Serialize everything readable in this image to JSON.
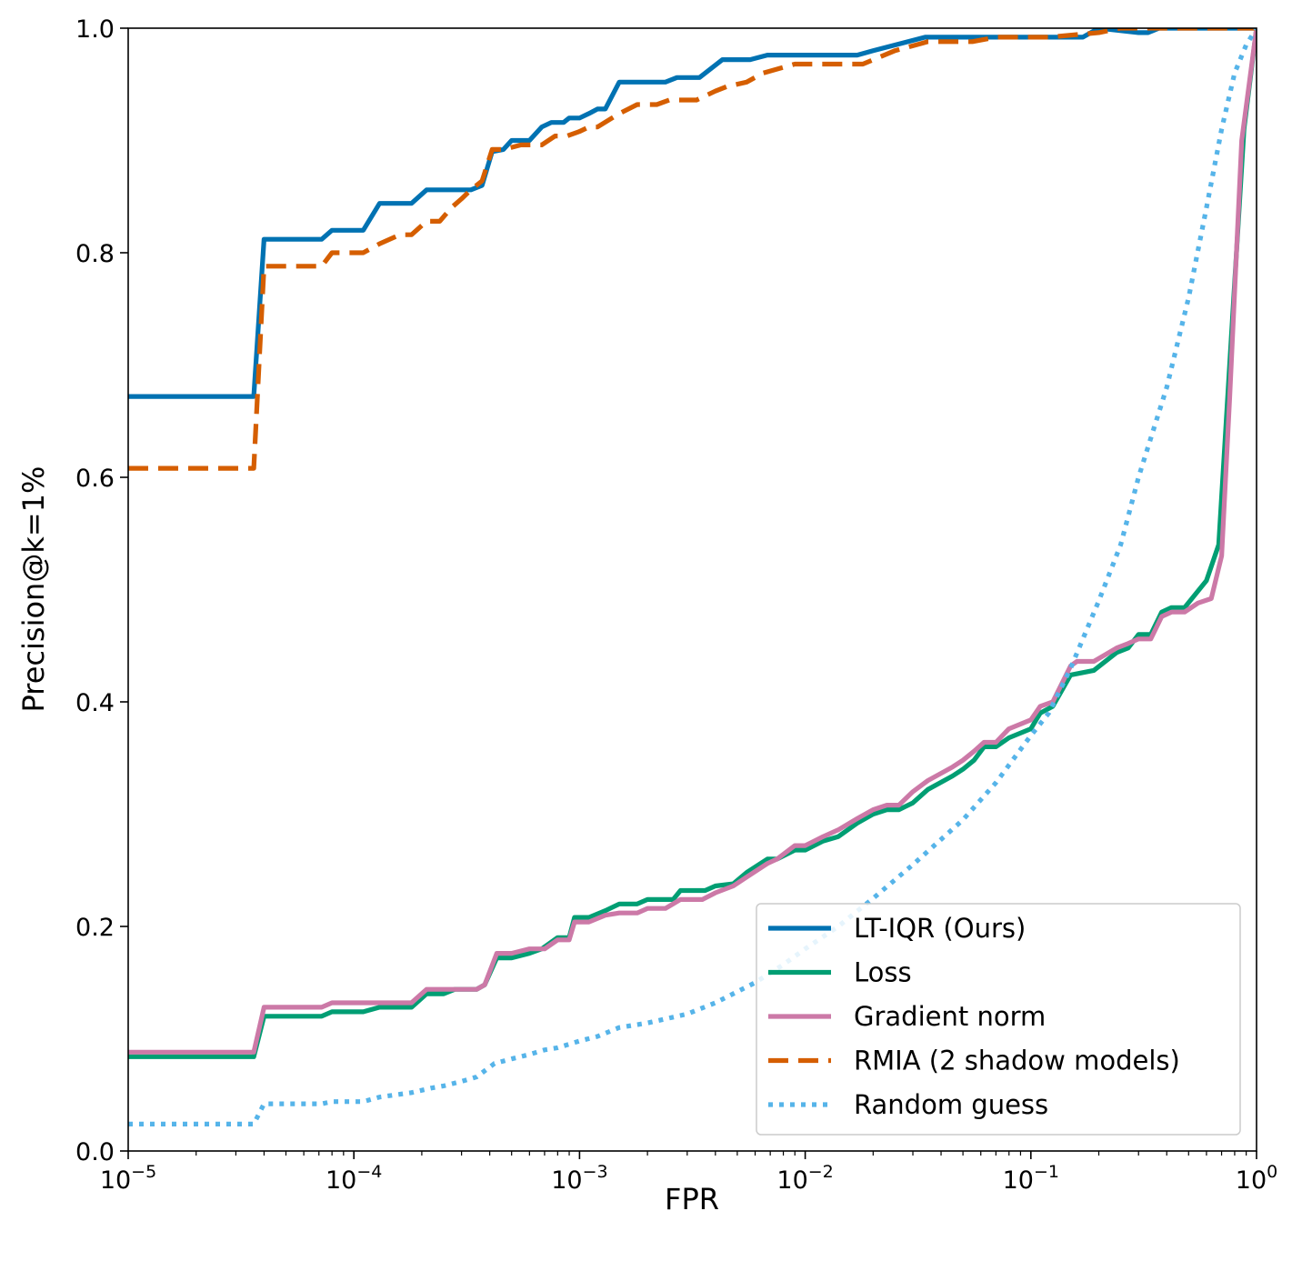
{
  "chart_data": {
    "type": "line",
    "xlabel": "FPR",
    "ylabel": "Precision@k=1%",
    "xscale": "log",
    "xlim": [
      1e-05,
      1
    ],
    "ylim": [
      0,
      1
    ],
    "grid": false,
    "legend_position": "lower-right",
    "x_ticks": [
      {
        "value": 1e-05,
        "base": "10",
        "exp": "−5"
      },
      {
        "value": 0.0001,
        "base": "10",
        "exp": "−4"
      },
      {
        "value": 0.001,
        "base": "10",
        "exp": "−3"
      },
      {
        "value": 0.01,
        "base": "10",
        "exp": "−2"
      },
      {
        "value": 0.1,
        "base": "10",
        "exp": "−1"
      },
      {
        "value": 1,
        "base": "10",
        "exp": "0"
      }
    ],
    "y_ticks": [
      {
        "value": 0,
        "label": "0.0"
      },
      {
        "value": 0.2,
        "label": "0.2"
      },
      {
        "value": 0.4,
        "label": "0.4"
      },
      {
        "value": 0.6,
        "label": "0.6"
      },
      {
        "value": 0.8,
        "label": "0.8"
      },
      {
        "value": 1,
        "label": "1.0"
      }
    ],
    "series": [
      {
        "name": "LT-IQR (Ours)",
        "color": "#0072b2",
        "style": "solid",
        "points": [
          [
            1e-05,
            0.672
          ],
          [
            3.6e-05,
            0.672
          ],
          [
            4e-05,
            0.812
          ],
          [
            7.2e-05,
            0.812
          ],
          [
            8e-05,
            0.82
          ],
          [
            0.00011,
            0.82
          ],
          [
            0.00013,
            0.844
          ],
          [
            0.00018,
            0.844
          ],
          [
            0.00021,
            0.856
          ],
          [
            0.00033,
            0.856
          ],
          [
            0.00037,
            0.86
          ],
          [
            0.00041,
            0.89
          ],
          [
            0.00046,
            0.892
          ],
          [
            0.0005,
            0.9
          ],
          [
            0.0006,
            0.9
          ],
          [
            0.00068,
            0.912
          ],
          [
            0.00075,
            0.916
          ],
          [
            0.00085,
            0.916
          ],
          [
            0.0009,
            0.92
          ],
          [
            0.001,
            0.92
          ],
          [
            0.0011,
            0.924
          ],
          [
            0.0012,
            0.928
          ],
          [
            0.0013,
            0.928
          ],
          [
            0.0015,
            0.952
          ],
          [
            0.0024,
            0.952
          ],
          [
            0.0027,
            0.956
          ],
          [
            0.0034,
            0.956
          ],
          [
            0.0043,
            0.972
          ],
          [
            0.0057,
            0.972
          ],
          [
            0.0068,
            0.976
          ],
          [
            0.017,
            0.976
          ],
          [
            0.02,
            0.98
          ],
          [
            0.034,
            0.992
          ],
          [
            0.17,
            0.992
          ],
          [
            0.2,
            1.0
          ],
          [
            0.3,
            0.996
          ],
          [
            0.33,
            0.996
          ],
          [
            0.37,
            1.0
          ],
          [
            1,
            1.0
          ]
        ]
      },
      {
        "name": "Loss",
        "color": "#009e73",
        "style": "solid",
        "points": [
          [
            1e-05,
            0.084
          ],
          [
            3.6e-05,
            0.084
          ],
          [
            4e-05,
            0.12
          ],
          [
            7.2e-05,
            0.12
          ],
          [
            8e-05,
            0.124
          ],
          [
            0.00011,
            0.124
          ],
          [
            0.00013,
            0.128
          ],
          [
            0.00018,
            0.128
          ],
          [
            0.00021,
            0.14
          ],
          [
            0.00025,
            0.14
          ],
          [
            0.00028,
            0.144
          ],
          [
            0.00035,
            0.144
          ],
          [
            0.00038,
            0.148
          ],
          [
            0.00043,
            0.172
          ],
          [
            0.0005,
            0.172
          ],
          [
            0.0006,
            0.176
          ],
          [
            0.00068,
            0.18
          ],
          [
            0.0008,
            0.19
          ],
          [
            0.0009,
            0.19
          ],
          [
            0.00095,
            0.208
          ],
          [
            0.0011,
            0.208
          ],
          [
            0.0013,
            0.214
          ],
          [
            0.0015,
            0.22
          ],
          [
            0.0018,
            0.22
          ],
          [
            0.002,
            0.224
          ],
          [
            0.0026,
            0.224
          ],
          [
            0.0028,
            0.232
          ],
          [
            0.0036,
            0.232
          ],
          [
            0.004,
            0.236
          ],
          [
            0.0048,
            0.238
          ],
          [
            0.0055,
            0.248
          ],
          [
            0.0068,
            0.26
          ],
          [
            0.0075,
            0.26
          ],
          [
            0.009,
            0.268
          ],
          [
            0.01,
            0.268
          ],
          [
            0.012,
            0.276
          ],
          [
            0.014,
            0.28
          ],
          [
            0.017,
            0.292
          ],
          [
            0.02,
            0.3
          ],
          [
            0.023,
            0.304
          ],
          [
            0.026,
            0.304
          ],
          [
            0.03,
            0.31
          ],
          [
            0.035,
            0.322
          ],
          [
            0.045,
            0.334
          ],
          [
            0.05,
            0.34
          ],
          [
            0.056,
            0.348
          ],
          [
            0.062,
            0.36
          ],
          [
            0.07,
            0.36
          ],
          [
            0.08,
            0.368
          ],
          [
            0.1,
            0.376
          ],
          [
            0.11,
            0.39
          ],
          [
            0.125,
            0.396
          ],
          [
            0.15,
            0.424
          ],
          [
            0.19,
            0.428
          ],
          [
            0.24,
            0.444
          ],
          [
            0.27,
            0.448
          ],
          [
            0.3,
            0.46
          ],
          [
            0.34,
            0.46
          ],
          [
            0.38,
            0.48
          ],
          [
            0.42,
            0.484
          ],
          [
            0.48,
            0.484
          ],
          [
            0.6,
            0.508
          ],
          [
            0.68,
            0.54
          ],
          [
            0.76,
            0.7
          ],
          [
            0.88,
            0.91
          ],
          [
            1,
            1.0
          ]
        ]
      },
      {
        "name": "Gradient norm",
        "color": "#cc79a7",
        "style": "solid",
        "points": [
          [
            1e-05,
            0.088
          ],
          [
            3.6e-05,
            0.088
          ],
          [
            4e-05,
            0.128
          ],
          [
            7.2e-05,
            0.128
          ],
          [
            8e-05,
            0.132
          ],
          [
            0.00018,
            0.132
          ],
          [
            0.00021,
            0.144
          ],
          [
            0.00035,
            0.144
          ],
          [
            0.00038,
            0.148
          ],
          [
            0.00043,
            0.176
          ],
          [
            0.0005,
            0.176
          ],
          [
            0.0006,
            0.18
          ],
          [
            0.0007,
            0.18
          ],
          [
            0.0008,
            0.188
          ],
          [
            0.0009,
            0.188
          ],
          [
            0.00095,
            0.204
          ],
          [
            0.0011,
            0.204
          ],
          [
            0.0013,
            0.21
          ],
          [
            0.0015,
            0.212
          ],
          [
            0.0018,
            0.212
          ],
          [
            0.002,
            0.216
          ],
          [
            0.0024,
            0.216
          ],
          [
            0.0028,
            0.224
          ],
          [
            0.0035,
            0.224
          ],
          [
            0.004,
            0.23
          ],
          [
            0.0048,
            0.236
          ],
          [
            0.0055,
            0.244
          ],
          [
            0.0068,
            0.256
          ],
          [
            0.0075,
            0.26
          ],
          [
            0.009,
            0.272
          ],
          [
            0.01,
            0.272
          ],
          [
            0.012,
            0.28
          ],
          [
            0.014,
            0.286
          ],
          [
            0.017,
            0.296
          ],
          [
            0.02,
            0.304
          ],
          [
            0.023,
            0.308
          ],
          [
            0.026,
            0.308
          ],
          [
            0.03,
            0.32
          ],
          [
            0.035,
            0.33
          ],
          [
            0.045,
            0.342
          ],
          [
            0.05,
            0.348
          ],
          [
            0.056,
            0.356
          ],
          [
            0.062,
            0.364
          ],
          [
            0.07,
            0.364
          ],
          [
            0.08,
            0.376
          ],
          [
            0.1,
            0.384
          ],
          [
            0.11,
            0.396
          ],
          [
            0.125,
            0.4
          ],
          [
            0.15,
            0.432
          ],
          [
            0.16,
            0.436
          ],
          [
            0.19,
            0.436
          ],
          [
            0.24,
            0.448
          ],
          [
            0.27,
            0.452
          ],
          [
            0.3,
            0.456
          ],
          [
            0.34,
            0.456
          ],
          [
            0.38,
            0.476
          ],
          [
            0.42,
            0.48
          ],
          [
            0.48,
            0.48
          ],
          [
            0.55,
            0.488
          ],
          [
            0.63,
            0.492
          ],
          [
            0.7,
            0.53
          ],
          [
            0.76,
            0.67
          ],
          [
            0.86,
            0.9
          ],
          [
            1,
            1.0
          ]
        ]
      },
      {
        "name": "RMIA (2 shadow models)",
        "color": "#d55e00",
        "style": "dashed",
        "points": [
          [
            1e-05,
            0.608
          ],
          [
            3.6e-05,
            0.608
          ],
          [
            4e-05,
            0.788
          ],
          [
            7.2e-05,
            0.788
          ],
          [
            8e-05,
            0.8
          ],
          [
            0.00011,
            0.8
          ],
          [
            0.00013,
            0.808
          ],
          [
            0.00016,
            0.816
          ],
          [
            0.00018,
            0.816
          ],
          [
            0.00021,
            0.828
          ],
          [
            0.00024,
            0.828
          ],
          [
            0.00027,
            0.84
          ],
          [
            0.0003,
            0.848
          ],
          [
            0.00033,
            0.856
          ],
          [
            0.00037,
            0.864
          ],
          [
            0.00041,
            0.892
          ],
          [
            0.00046,
            0.892
          ],
          [
            0.00055,
            0.896
          ],
          [
            0.00068,
            0.896
          ],
          [
            0.00078,
            0.904
          ],
          [
            0.00088,
            0.904
          ],
          [
            0.001,
            0.908
          ],
          [
            0.0011,
            0.912
          ],
          [
            0.0012,
            0.912
          ],
          [
            0.0015,
            0.924
          ],
          [
            0.0018,
            0.932
          ],
          [
            0.0022,
            0.932
          ],
          [
            0.0025,
            0.936
          ],
          [
            0.0033,
            0.936
          ],
          [
            0.004,
            0.944
          ],
          [
            0.0045,
            0.948
          ],
          [
            0.0055,
            0.952
          ],
          [
            0.0065,
            0.96
          ],
          [
            0.009,
            0.968
          ],
          [
            0.018,
            0.968
          ],
          [
            0.025,
            0.98
          ],
          [
            0.035,
            0.988
          ],
          [
            0.055,
            0.988
          ],
          [
            0.07,
            0.992
          ],
          [
            0.12,
            0.992
          ],
          [
            0.2,
            0.996
          ],
          [
            0.25,
            1.0
          ],
          [
            1,
            1.0
          ]
        ]
      },
      {
        "name": "Random guess",
        "color": "#56b4e9",
        "style": "dotted",
        "points": [
          [
            1e-05,
            0.024
          ],
          [
            3.6e-05,
            0.024
          ],
          [
            4e-05,
            0.042
          ],
          [
            7.2e-05,
            0.042
          ],
          [
            8e-05,
            0.044
          ],
          [
            0.00011,
            0.044
          ],
          [
            0.00013,
            0.048
          ],
          [
            0.00018,
            0.052
          ],
          [
            0.00022,
            0.056
          ],
          [
            0.00025,
            0.058
          ],
          [
            0.0003,
            0.062
          ],
          [
            0.00035,
            0.066
          ],
          [
            0.00042,
            0.078
          ],
          [
            0.0005,
            0.082
          ],
          [
            0.0006,
            0.086
          ],
          [
            0.0007,
            0.09
          ],
          [
            0.0008,
            0.092
          ],
          [
            0.001,
            0.098
          ],
          [
            0.0012,
            0.102
          ],
          [
            0.0015,
            0.11
          ],
          [
            0.002,
            0.114
          ],
          [
            0.003,
            0.122
          ],
          [
            0.004,
            0.132
          ],
          [
            0.006,
            0.15
          ],
          [
            0.008,
            0.166
          ],
          [
            0.01,
            0.18
          ],
          [
            0.014,
            0.2
          ],
          [
            0.02,
            0.225
          ],
          [
            0.03,
            0.255
          ],
          [
            0.05,
            0.295
          ],
          [
            0.07,
            0.328
          ],
          [
            0.1,
            0.37
          ],
          [
            0.12,
            0.39
          ],
          [
            0.15,
            0.43
          ],
          [
            0.2,
            0.49
          ],
          [
            0.25,
            0.54
          ],
          [
            0.3,
            0.6
          ],
          [
            0.4,
            0.68
          ],
          [
            0.5,
            0.76
          ],
          [
            0.6,
            0.84
          ],
          [
            0.7,
            0.91
          ],
          [
            0.8,
            0.96
          ],
          [
            0.9,
            0.985
          ],
          [
            1,
            1.0
          ]
        ]
      }
    ]
  }
}
